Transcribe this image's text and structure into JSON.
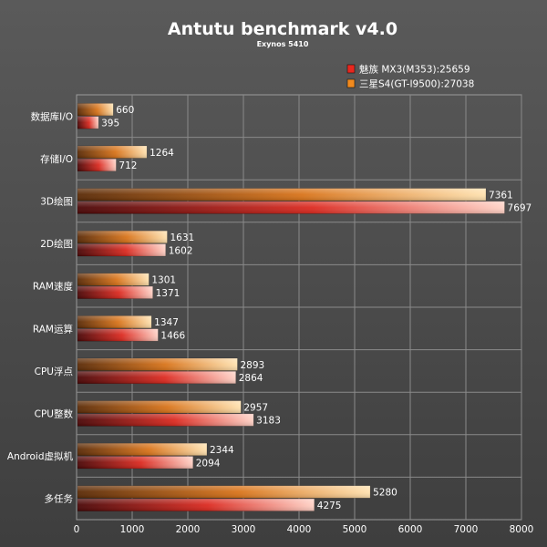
{
  "chart_data": {
    "type": "bar",
    "orientation": "horizontal",
    "title": "Antutu benchmark v4.0",
    "subtitle": "Exynos 5410",
    "categories": [
      "数据库I/O",
      "存储I/O",
      "3D绘图",
      "2D绘图",
      "RAM速度",
      "RAM运算",
      "CPU浮点",
      "CPU整数",
      "Android虚拟机",
      "多任务"
    ],
    "series": [
      {
        "name": "三星S4(GT-I9500):27038",
        "color": "#f28a1e",
        "values": [
          660,
          1264,
          7361,
          1631,
          1301,
          1347,
          2893,
          2957,
          2344,
          5280
        ]
      },
      {
        "name": "魅族 MX3(M353):25659",
        "color": "#e8271e",
        "values": [
          395,
          712,
          7697,
          1602,
          1371,
          1466,
          2864,
          3183,
          2094,
          4275
        ]
      }
    ],
    "legend_order": [
      1,
      0
    ],
    "xlim": [
      0,
      8000
    ],
    "xticks": [
      0,
      1000,
      2000,
      3000,
      4000,
      5000,
      6000,
      7000,
      8000
    ],
    "grid": true,
    "legend_position": "top-right"
  }
}
